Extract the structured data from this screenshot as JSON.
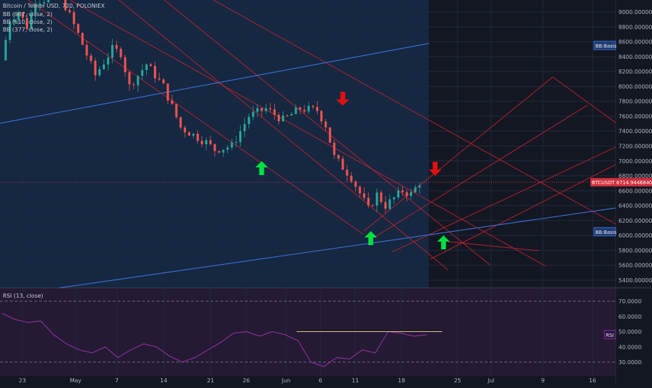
{
  "header": {
    "symbol_line": "Bitcoin / Tether USD, 720, POLONIEX",
    "bb_lines": [
      "BB (987, close, 2)",
      "BB (610, close, 2)",
      "BB (377, close, 2)"
    ]
  },
  "rsi_header": "RSI (13, close)",
  "colors": {
    "background": "#131722",
    "price_history_band": "#152741",
    "rsi_band": "#241a33",
    "candle_up": "#26a69a",
    "candle_down": "#ef5350",
    "channel": "#d92030",
    "bb_basis": "#3a6cd0",
    "rsi_line": "#8a2f9a",
    "arrow_up": "#00e040",
    "arrow_down": "#e01010"
  },
  "chart_data": {
    "type": "candlestick",
    "symbol": "Bitcoin / Tether USD",
    "interval": "720",
    "exchange": "POLONIEX",
    "y_axis": {
      "ticks": [
        9000,
        8800,
        8600,
        8400,
        8200,
        8000,
        7800,
        7600,
        7400,
        7200,
        7000,
        6800,
        6600,
        6400,
        6200,
        6000,
        5800,
        5600,
        5400
      ],
      "decimals": 8,
      "range": [
        5350,
        9100
      ]
    },
    "x_axis": {
      "tick_labels": [
        "23",
        "May",
        "7",
        "14",
        "21",
        "26",
        "Jun",
        "6",
        "11",
        "18",
        "25",
        "Jul",
        "9",
        "16"
      ]
    },
    "price_series_approx": [
      {
        "t": 0,
        "close": 8350
      },
      {
        "t": 1,
        "close": 8900
      },
      {
        "t": 2,
        "close": 9000
      },
      {
        "t": 3,
        "close": 8800
      },
      {
        "t": 4,
        "close": 9150
      },
      {
        "t": 7,
        "close": 9200
      },
      {
        "t": 9,
        "close": 8700
      },
      {
        "t": 11,
        "close": 8150
      },
      {
        "t": 13,
        "close": 8500
      },
      {
        "t": 14,
        "close": 8450
      },
      {
        "t": 15,
        "close": 8000
      },
      {
        "t": 17,
        "close": 8300
      },
      {
        "t": 19,
        "close": 8000
      },
      {
        "t": 21,
        "close": 7450
      },
      {
        "t": 24,
        "close": 7250
      },
      {
        "t": 25,
        "close": 7150
      },
      {
        "t": 27,
        "close": 7200
      },
      {
        "t": 29,
        "close": 7600
      },
      {
        "t": 31,
        "close": 7700
      },
      {
        "t": 33,
        "close": 7550
      },
      {
        "t": 35,
        "close": 7700
      },
      {
        "t": 37,
        "close": 7680
      },
      {
        "t": 38,
        "close": 7480
      },
      {
        "t": 39,
        "close": 7050
      },
      {
        "t": 41,
        "close": 6780
      },
      {
        "t": 43,
        "close": 6350
      },
      {
        "t": 44,
        "close": 6550
      },
      {
        "t": 45,
        "close": 6400
      },
      {
        "t": 47,
        "close": 6600
      },
      {
        "t": 48,
        "close": 6550
      },
      {
        "t": 49,
        "close": 6714
      }
    ],
    "last_price": {
      "label": "BTCUSDT",
      "value": "6714.9446840"
    },
    "bb_basis_labels": [
      {
        "label": "BB:Basis",
        "value": 8550
      },
      {
        "label": "BB:Basis",
        "value": 6050
      }
    ],
    "signals": [
      {
        "type": "up",
        "date": "late May",
        "price": 7000
      },
      {
        "type": "down",
        "date": "Jun 9",
        "price": 7850
      },
      {
        "type": "up",
        "date": "Jun 12",
        "price": 5980
      },
      {
        "type": "down",
        "date": "Jun 22",
        "price": 6850
      },
      {
        "type": "up",
        "date": "Jun 23",
        "price": 5880
      }
    ],
    "rsi": {
      "period": 13,
      "levels": [
        70,
        30
      ],
      "ticks": [
        70,
        60,
        50,
        40,
        30
      ],
      "last_label": "RSI",
      "values_approx": [
        62,
        58,
        56,
        57,
        48,
        42,
        38,
        36,
        40,
        33,
        38,
        42,
        40,
        34,
        30,
        33,
        38,
        43,
        49,
        50,
        47,
        50,
        48,
        44,
        30,
        27,
        33,
        32,
        38,
        36,
        50,
        49,
        47,
        48
      ]
    }
  }
}
